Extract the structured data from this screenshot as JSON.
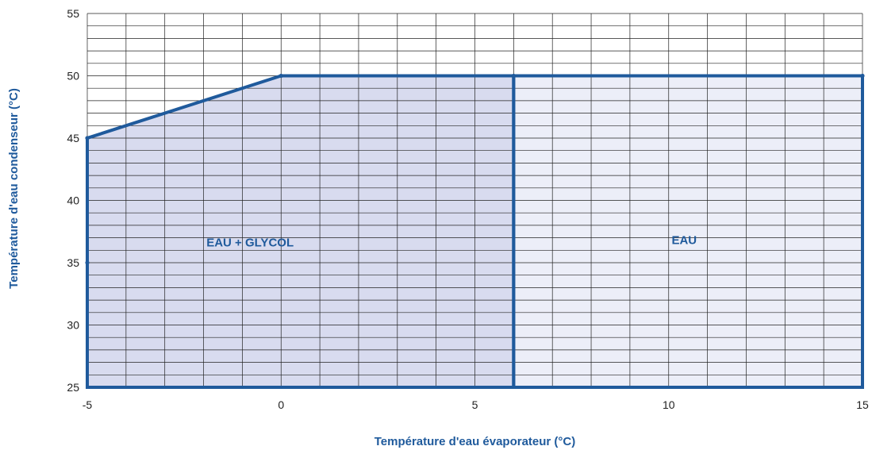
{
  "chart_data": {
    "type": "area",
    "title": "",
    "xlabel": "Température d'eau évaporateur (°C)",
    "ylabel": "Température d'eau condenseur (°C)",
    "xlim": [
      -5,
      15
    ],
    "ylim": [
      25,
      55
    ],
    "x_ticks": [
      -5,
      0,
      5,
      10,
      15
    ],
    "y_ticks": [
      25,
      30,
      35,
      40,
      45,
      50,
      55
    ],
    "x_minor_step": 1,
    "y_minor_step": 1,
    "grid": true,
    "legend": "none",
    "colors": {
      "outline": "#1f5a9c",
      "glycol_fill": "#d8dbef",
      "water_fill": "#eceef8",
      "grid": "#222222",
      "label": "#1f5a9c"
    },
    "regions": [
      {
        "label": "EAU + GLYCOL",
        "polygon": [
          [
            -5,
            25
          ],
          [
            -5,
            45
          ],
          [
            0,
            50
          ],
          [
            6,
            50
          ],
          [
            6,
            25
          ]
        ]
      },
      {
        "label": "EAU",
        "polygon": [
          [
            6,
            25
          ],
          [
            6,
            50
          ],
          [
            15,
            50
          ],
          [
            15,
            25
          ]
        ]
      }
    ],
    "boundary_points": [
      [
        -5,
        35
      ],
      [
        -5,
        45
      ],
      [
        0,
        50
      ],
      [
        6,
        50
      ],
      [
        15,
        50
      ]
    ]
  }
}
